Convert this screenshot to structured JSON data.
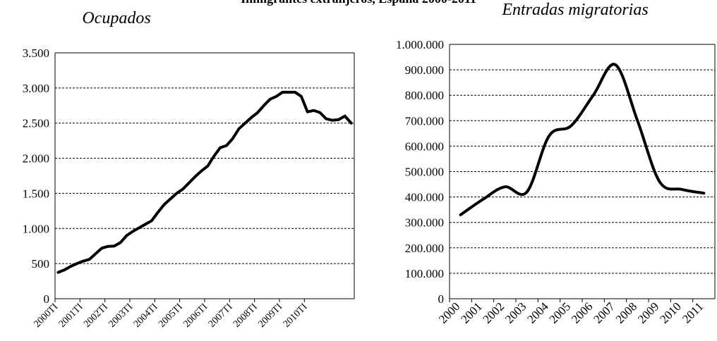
{
  "title": "Inmigrantes extranjeros, España 2000-2011",
  "chart_data": [
    {
      "type": "line",
      "subtitle": "Ocupados",
      "color": "#000000",
      "grid": true,
      "categories": [
        "2000TI",
        null,
        null,
        null,
        "2001TI",
        null,
        null,
        null,
        "2002TI",
        null,
        null,
        null,
        "2003TI",
        null,
        null,
        null,
        "2004TI",
        null,
        null,
        null,
        "2005TI",
        null,
        null,
        null,
        "2006TI",
        null,
        null,
        null,
        "2007TI",
        null,
        null,
        null,
        "2008TI",
        null,
        null,
        null,
        "2009TI",
        null,
        null,
        null,
        "2010TI",
        null,
        null,
        null,
        null,
        null,
        null,
        null
      ],
      "values": [
        375,
        410,
        460,
        500,
        535,
        560,
        640,
        720,
        745,
        750,
        800,
        900,
        960,
        1010,
        1060,
        1110,
        1230,
        1340,
        1420,
        1500,
        1560,
        1650,
        1740,
        1820,
        1890,
        2030,
        2150,
        2180,
        2280,
        2420,
        2500,
        2580,
        2650,
        2750,
        2840,
        2880,
        2940,
        2940,
        2940,
        2880,
        2660,
        2680,
        2650,
        2560,
        2540,
        2550,
        2600,
        2500
      ],
      "ylim": [
        0,
        3500
      ],
      "yticks": [
        0,
        500,
        {
          "value": 1000,
          "label": "1.000"
        },
        {
          "value": 1500,
          "label": "1.500"
        },
        {
          "value": 2000,
          "label": "2.000"
        },
        {
          "value": 2500,
          "label": "2.500"
        },
        {
          "value": 3000,
          "label": "3.000"
        },
        {
          "value": 3500,
          "label": "3.500"
        }
      ]
    },
    {
      "type": "line",
      "subtitle": "Entradas migratorias",
      "color": "#000000",
      "grid": true,
      "smooth": true,
      "categories": [
        "2000",
        "2001",
        "2002",
        "2003",
        "2004",
        "2005",
        "2006",
        "2007",
        "2008",
        "2009",
        "2010",
        "2011"
      ],
      "values": [
        330000,
        390000,
        440000,
        420000,
        640000,
        680000,
        800000,
        920000,
        700000,
        460000,
        430000,
        415000
      ],
      "ylim": [
        0,
        1000000
      ],
      "yticks": [
        0,
        {
          "value": 100000,
          "label": "100.000"
        },
        {
          "value": 200000,
          "label": "200.000"
        },
        {
          "value": 300000,
          "label": "300.000"
        },
        {
          "value": 400000,
          "label": "400.000"
        },
        {
          "value": 500000,
          "label": "500.000"
        },
        {
          "value": 600000,
          "label": "600.000"
        },
        {
          "value": 700000,
          "label": "700.000"
        },
        {
          "value": 800000,
          "label": "800.000"
        },
        {
          "value": 900000,
          "label": "900.000"
        },
        {
          "value": 1000000,
          "label": "1.000.000"
        }
      ]
    }
  ]
}
